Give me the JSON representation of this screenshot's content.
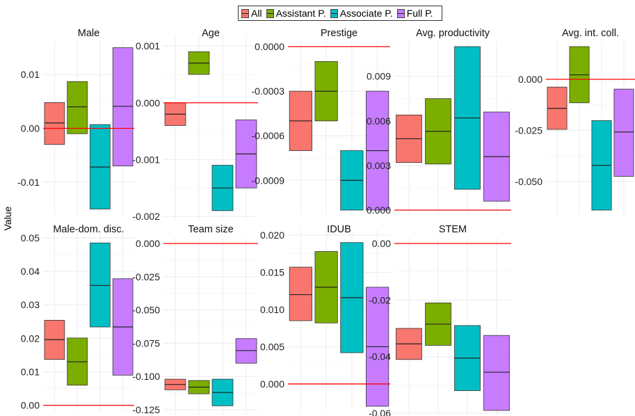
{
  "legend": {
    "items": [
      {
        "label": "All",
        "color": "#f8766d"
      },
      {
        "label": "Assistant P.",
        "color": "#7cae00"
      },
      {
        "label": "Associate P.",
        "color": "#00bfc4"
      },
      {
        "label": "Full P.",
        "color": "#c77cff"
      }
    ]
  },
  "ylabel": "Value",
  "chart_data": [
    {
      "type": "box",
      "title": "Male",
      "categories": [
        "All",
        "Assistant P.",
        "Associate P.",
        "Full P."
      ],
      "ylim": [
        -0.0152,
        0.0152
      ],
      "ticks": [
        -0.01,
        0.0,
        0.01
      ],
      "tick_labels": [
        "-0.01",
        "0.00",
        "0.01"
      ],
      "reference_line": 0,
      "boxes": [
        {
          "low": -0.003,
          "mid": 0.001,
          "high": 0.0048
        },
        {
          "low": -0.001,
          "mid": 0.004,
          "high": 0.0087
        },
        {
          "low": -0.015,
          "mid": -0.0072,
          "high": 0.0007
        },
        {
          "low": -0.007,
          "mid": 0.0041,
          "high": 0.015
        }
      ]
    },
    {
      "type": "box",
      "title": "Age",
      "categories": [
        "All",
        "Assistant P.",
        "Associate P.",
        "Full P."
      ],
      "ylim": [
        -0.002,
        0.0011
      ],
      "ticks": [
        -0.002,
        -0.001,
        0.0,
        0.001
      ],
      "tick_labels": [
        "-0.002",
        "-0.001",
        "0.000",
        "0.001"
      ],
      "reference_line": 0,
      "boxes": [
        {
          "low": -0.0004,
          "mid": -0.0002,
          "high": 0.0
        },
        {
          "low": 0.0005,
          "mid": 0.0007,
          "high": 0.0009
        },
        {
          "low": -0.0019,
          "mid": -0.0015,
          "high": -0.0011
        },
        {
          "low": -0.0015,
          "mid": -0.0009,
          "high": -0.0003
        }
      ]
    },
    {
      "type": "box",
      "title": "Prestige",
      "categories": [
        "All",
        "Assistant P.",
        "Associate P.",
        "Full P."
      ],
      "ylim": [
        -0.0011,
        0.0
      ],
      "ticks": [
        -0.0009,
        -0.0006,
        -0.0003,
        0.0
      ],
      "tick_labels": [
        "-0.0009",
        "-0.0006",
        "-0.0003",
        "0.0000"
      ],
      "reference_line": 0,
      "boxes": [
        {
          "low": -0.0007,
          "mid": -0.0005,
          "high": -0.0003
        },
        {
          "low": -0.0005,
          "mid": -0.0003,
          "high": -0.0001
        },
        {
          "low": -0.0011,
          "mid": -0.0009,
          "high": -0.0007
        },
        {
          "low": -0.0011,
          "mid": -0.0007,
          "high": -0.0003
        }
      ]
    },
    {
      "type": "box",
      "title": "Avg. productivity",
      "categories": [
        "All",
        "Assistant P.",
        "Associate P.",
        "Full P."
      ],
      "ylim": [
        0.0,
        0.011
      ],
      "ticks": [
        0.0,
        0.003,
        0.006,
        0.009
      ],
      "tick_labels": [
        "0.000",
        "0.003",
        "0.006",
        "0.009"
      ],
      "reference_line": 0,
      "boxes": [
        {
          "low": 0.0032,
          "mid": 0.0048,
          "high": 0.0064
        },
        {
          "low": 0.0031,
          "mid": 0.0053,
          "high": 0.0075
        },
        {
          "low": 0.0014,
          "mid": 0.0062,
          "high": 0.011
        },
        {
          "low": 0.0006,
          "mid": 0.0036,
          "high": 0.0066
        }
      ]
    },
    {
      "type": "box",
      "title": "Avg. int. coll.",
      "categories": [
        "All",
        "Assistant P.",
        "Associate P.",
        "Full P."
      ],
      "ylim": [
        -0.064,
        0.016
      ],
      "ticks": [
        -0.05,
        -0.025,
        0.0
      ],
      "tick_labels": [
        "-0.050",
        "-0.025",
        "0.000"
      ],
      "reference_line": 0,
      "boxes": [
        {
          "low": -0.0245,
          "mid": -0.0142,
          "high": -0.0038
        },
        {
          "low": -0.0115,
          "mid": 0.0022,
          "high": 0.016
        },
        {
          "low": -0.064,
          "mid": -0.0421,
          "high": -0.0202
        },
        {
          "low": -0.0475,
          "mid": -0.0258,
          "high": -0.0048
        }
      ]
    },
    {
      "type": "box",
      "title": "Male-dom. disc.",
      "categories": [
        "All",
        "Assistant P.",
        "Associate P.",
        "Full P."
      ],
      "ylim": [
        -0.0005,
        0.05
      ],
      "ticks": [
        0.0,
        0.01,
        0.02,
        0.03,
        0.04,
        0.05
      ],
      "tick_labels": [
        "0.00",
        "0.01",
        "0.02",
        "0.03",
        "0.04",
        "0.05"
      ],
      "reference_line": 0,
      "boxes": [
        {
          "low": 0.0137,
          "mid": 0.0196,
          "high": 0.0254
        },
        {
          "low": 0.006,
          "mid": 0.013,
          "high": 0.0201
        },
        {
          "low": 0.0234,
          "mid": 0.0358,
          "high": 0.0485
        },
        {
          "low": 0.009,
          "mid": 0.0234,
          "high": 0.0378
        }
      ]
    },
    {
      "type": "box",
      "title": "Team size",
      "categories": [
        "All",
        "Assistant P.",
        "Associate P.",
        "Full P."
      ],
      "ylim": [
        -0.1255,
        0.0
      ],
      "ticks": [
        -0.125,
        -0.1,
        -0.075,
        -0.05,
        -0.025,
        0.0
      ],
      "tick_labels": [
        "-0.125",
        "-0.100",
        "-0.075",
        "-0.050",
        "-0.025",
        "0.000"
      ],
      "reference_line": 0,
      "boxes": [
        {
          "low": -0.11,
          "mid": -0.106,
          "high": -0.102
        },
        {
          "low": -0.113,
          "mid": -0.108,
          "high": -0.103
        },
        {
          "low": -0.122,
          "mid": -0.112,
          "high": -0.102
        },
        {
          "low": -0.09,
          "mid": -0.0805,
          "high": -0.0715
        }
      ]
    },
    {
      "type": "box",
      "title": "IDUB",
      "categories": [
        "All",
        "Assistant P.",
        "Associate P.",
        "Full P."
      ],
      "ylim": [
        -0.003,
        0.02
      ],
      "ticks": [
        0.0,
        0.005,
        0.01,
        0.015,
        0.02
      ],
      "tick_labels": [
        "0.000",
        "0.005",
        "0.010",
        "0.015",
        "0.020"
      ],
      "reference_line": 0,
      "boxes": [
        {
          "low": 0.0085,
          "mid": 0.012,
          "high": 0.0157
        },
        {
          "low": 0.0082,
          "mid": 0.013,
          "high": 0.0178
        },
        {
          "low": 0.0042,
          "mid": 0.0116,
          "high": 0.019
        },
        {
          "low": -0.003,
          "mid": 0.005,
          "high": 0.013
        }
      ]
    },
    {
      "type": "box",
      "title": "STEM",
      "categories": [
        "All",
        "Assistant P.",
        "Associate P.",
        "Full P."
      ],
      "ylim": [
        -0.059,
        0.0
      ],
      "ticks": [
        -0.06,
        -0.04,
        -0.02,
        0.0
      ],
      "tick_labels": [
        "-0.06",
        "-0.04",
        "-0.02",
        "0.00"
      ],
      "reference_line": 0,
      "boxes": [
        {
          "low": -0.041,
          "mid": -0.0355,
          "high": -0.03
        },
        {
          "low": -0.036,
          "mid": -0.0285,
          "high": -0.021
        },
        {
          "low": -0.052,
          "mid": -0.0405,
          "high": -0.029
        },
        {
          "low": -0.059,
          "mid": -0.0455,
          "high": -0.0325
        }
      ]
    }
  ]
}
